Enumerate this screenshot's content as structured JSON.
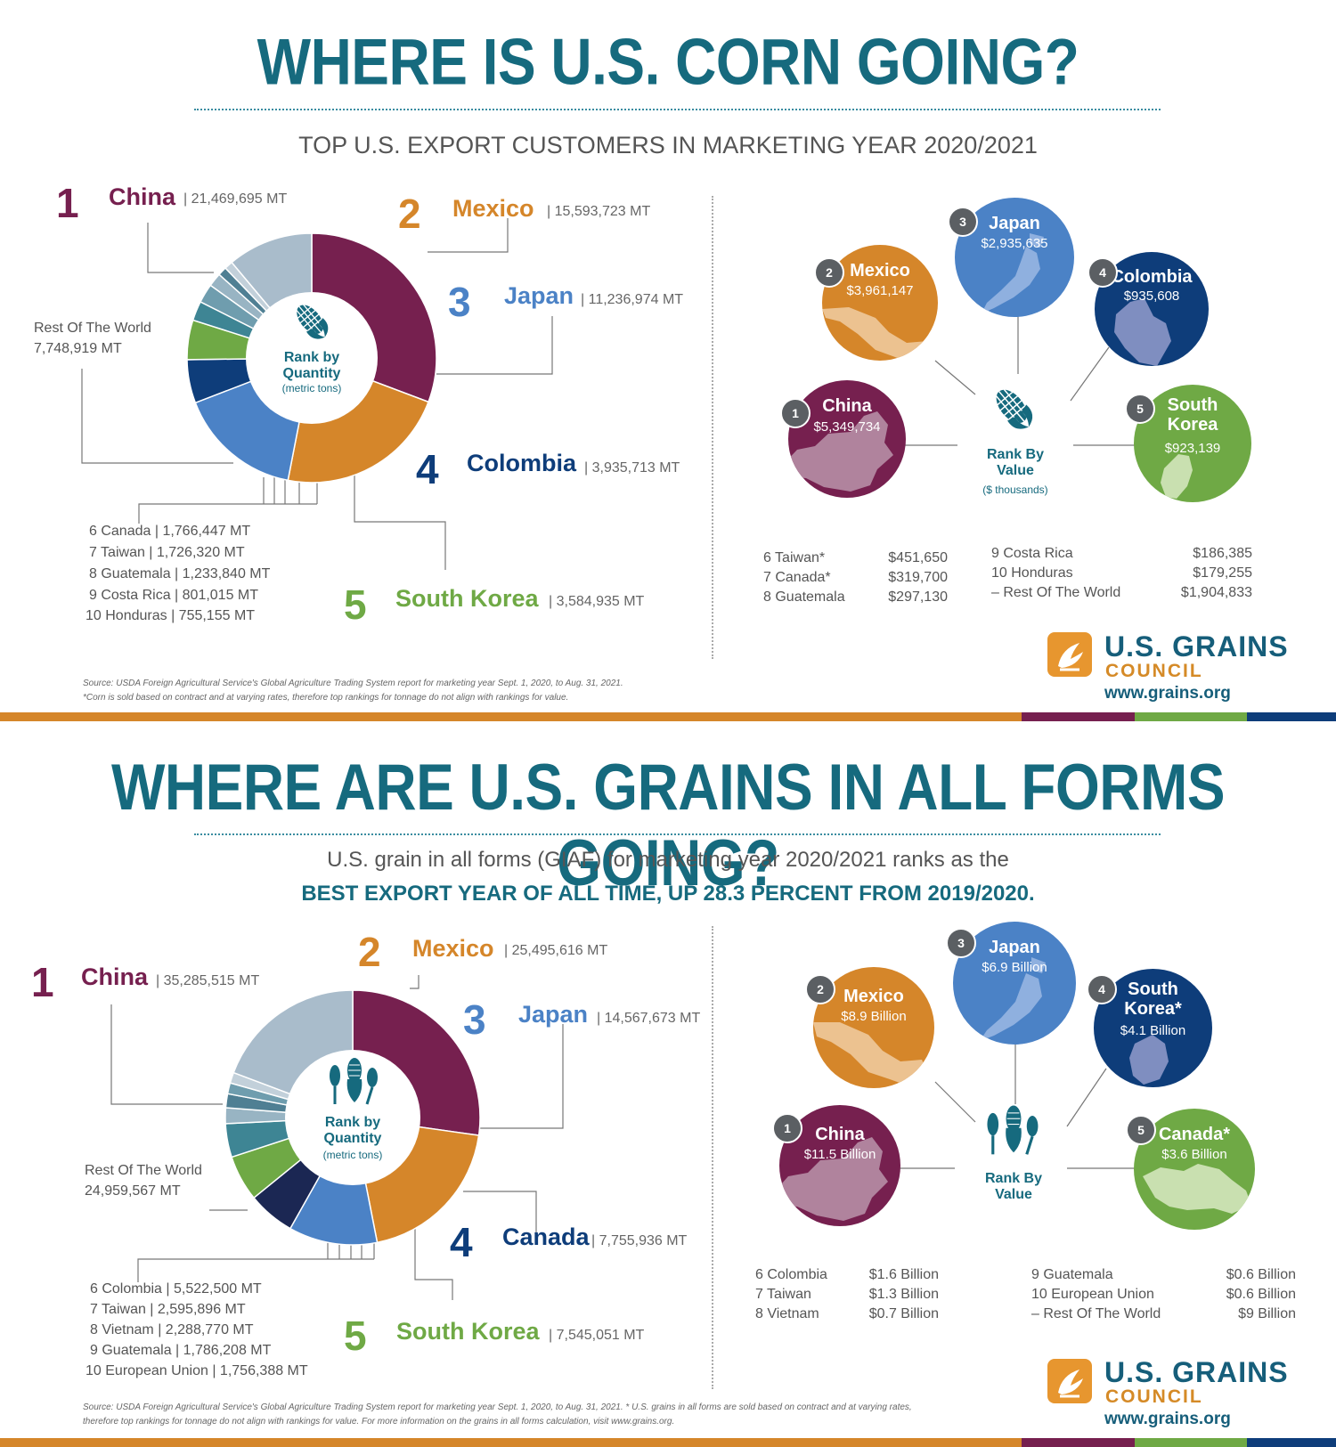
{
  "section1": {
    "title": "WHERE IS U.S. CORN GOING?",
    "subtitle": "TOP U.S. EXPORT CUSTOMERS IN MARKETING YEAR 2020/2021",
    "quantity_center": {
      "line1": "Rank by",
      "line2": "Quantity",
      "line3": "(metric tons)"
    },
    "top5": [
      {
        "rank": "1",
        "name": "China",
        "value": "| 21,469,695 MT"
      },
      {
        "rank": "2",
        "name": "Mexico",
        "value": "| 15,593,723 MT"
      },
      {
        "rank": "3",
        "name": "Japan",
        "value": "| 11,236,974 MT"
      },
      {
        "rank": "4",
        "name": "Colombia",
        "value": "| 3,935,713 MT"
      },
      {
        "rank": "5",
        "name": "South Korea",
        "value": "| 3,584,935 MT"
      }
    ],
    "rest_label": "Rest Of The World",
    "rest_value": "7,748,919 MT",
    "others": [
      "6  Canada  |  1,766,447 MT",
      "7  Taiwan  |  1,726,320 MT",
      "8  Guatemala  |  1,233,840 MT",
      "9  Costa Rica  |  801,015 MT",
      "10 Honduras |  755,155 MT"
    ],
    "value_center": {
      "line1": "Rank By",
      "line2": "Value",
      "line3": "($ thousands)"
    },
    "value_bubbles": [
      {
        "rank": "1",
        "name": "China",
        "value": "$5,349,734"
      },
      {
        "rank": "2",
        "name": "Mexico",
        "value": "$3,961,147"
      },
      {
        "rank": "3",
        "name": "Japan",
        "value": "$2,935,635"
      },
      {
        "rank": "4",
        "name": "Colombia",
        "value": "$935,608"
      },
      {
        "rank": "5",
        "name": "South Korea",
        "value": "$923,139"
      }
    ],
    "value_list_left": [
      {
        "label": "6  Taiwan*",
        "value": "$451,650"
      },
      {
        "label": "7  Canada*",
        "value": "$319,700"
      },
      {
        "label": "8  Guatemala",
        "value": "$297,130"
      }
    ],
    "value_list_right": [
      {
        "label": "9  Costa Rica",
        "value": "$186,385"
      },
      {
        "label": "10 Honduras",
        "value": "$179,255"
      },
      {
        "label": "–  Rest Of The World",
        "value": "$1,904,833"
      }
    ],
    "source_line1": "Source: USDA Foreign Agricultural Service's Global Agriculture Trading System report for marketing year Sept. 1, 2020, to Aug. 31, 2021.",
    "source_line2": "*Corn is sold based on contract and at varying rates, therefore top rankings for tonnage do not align with rankings for value."
  },
  "section2": {
    "title": "WHERE ARE U.S. GRAINS IN ALL FORMS GOING?",
    "subtitle_line1": "U.S. grain in all forms (GIAF) for marketing year 2020/2021 ranks as the",
    "subtitle_line2": "BEST EXPORT YEAR OF ALL TIME, UP 28.3 PERCENT FROM 2019/2020.",
    "quantity_center": {
      "line1": "Rank by",
      "line2": "Quantity",
      "line3": "(metric tons)"
    },
    "top5": [
      {
        "rank": "1",
        "name": "China",
        "value": "| 35,285,515 MT"
      },
      {
        "rank": "2",
        "name": "Mexico",
        "value": "| 25,495,616 MT"
      },
      {
        "rank": "3",
        "name": "Japan",
        "value": "| 14,567,673 MT"
      },
      {
        "rank": "4",
        "name": "Canada",
        "value": "| 7,755,936 MT"
      },
      {
        "rank": "5",
        "name": "South Korea",
        "value": "| 7,545,051 MT"
      }
    ],
    "rest_label": "Rest Of The World",
    "rest_value": "24,959,567 MT",
    "others": [
      "6  Colombia  |  5,522,500 MT",
      "7  Taiwan  |  2,595,896 MT",
      "8  Vietnam  |  2,288,770 MT",
      "9  Guatemala |  1,786,208 MT",
      "10  European Union  |  1,756,388 MT"
    ],
    "value_center": {
      "line1": "Rank By",
      "line2": "Value"
    },
    "value_bubbles": [
      {
        "rank": "1",
        "name": "China",
        "value": "$11.5 Billion"
      },
      {
        "rank": "2",
        "name": "Mexico",
        "value": "$8.9 Billion"
      },
      {
        "rank": "3",
        "name": "Japan",
        "value": "$6.9 Billion"
      },
      {
        "rank": "4",
        "name": "South Korea*",
        "value": "$4.1 Billion"
      },
      {
        "rank": "5",
        "name": "Canada*",
        "value": "$3.6 Billion"
      }
    ],
    "value_list_left": [
      {
        "label": "6  Colombia",
        "value": "$1.6 Billion"
      },
      {
        "label": "7  Taiwan",
        "value": "$1.3 Billion"
      },
      {
        "label": "8  Vietnam",
        "value": "$0.7 Billion"
      }
    ],
    "value_list_right": [
      {
        "label": "9  Guatemala",
        "value": "$0.6 Billion"
      },
      {
        "label": "10 European Union",
        "value": "$0.6 Billion"
      },
      {
        "label": "–  Rest Of The World",
        "value": "$9 Billion"
      }
    ],
    "source_line1": "Source: USDA Foreign Agricultural Service's Global Agriculture Trading System report for marketing year Sept. 1, 2020, to Aug. 31, 2021. * U.S. grains in all forms are sold based on contract and at varying rates,",
    "source_line2": "therefore top rankings for tonnage do not align with rankings for value. For more information on the grains in all forms calculation, visit www.grains.org."
  },
  "logo": {
    "line1": "U.S. GRAINS",
    "line2": "COUNCIL",
    "url": "www.grains.org"
  },
  "colors": {
    "teal": "#166a7e",
    "china": "#76204f",
    "mexico": "#d5862a",
    "japan": "#4b82c6",
    "colombia": "#0e3d7a",
    "canada_dark": "#1b2753",
    "south_korea": "#6fa945",
    "rest": "#a9bccb"
  },
  "chart_data": [
    {
      "type": "pie",
      "title": "WHERE IS U.S. CORN GOING?",
      "categories": [
        "China",
        "Mexico",
        "Japan",
        "Colombia",
        "South Korea",
        "Canada",
        "Taiwan",
        "Guatemala",
        "Costa Rica",
        "Honduras",
        "Rest Of The World"
      ],
      "values": [
        21469695,
        15593723,
        11236974,
        3935713,
        3584935,
        1766447,
        1726320,
        1233840,
        801015,
        755155,
        7748919
      ],
      "unit": "MT"
    },
    {
      "type": "pie",
      "title": "WHERE ARE U.S. GRAINS IN ALL FORMS GOING?",
      "categories": [
        "China",
        "Mexico",
        "Japan",
        "Canada",
        "South Korea",
        "Colombia",
        "Taiwan",
        "Vietnam",
        "Guatemala",
        "European Union",
        "Rest Of The World"
      ],
      "values": [
        35285515,
        25495616,
        14567673,
        7755936,
        7545051,
        5522500,
        2595896,
        2288770,
        1786208,
        1756388,
        24959567
      ],
      "unit": "MT"
    }
  ]
}
